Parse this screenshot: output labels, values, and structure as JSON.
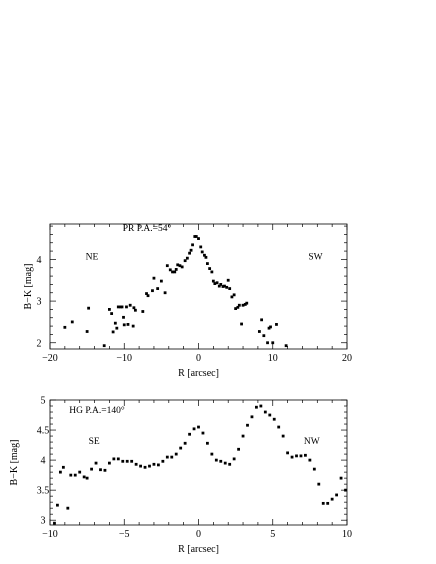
{
  "chart_data": [
    {
      "type": "scatter",
      "title": "",
      "xlabel": "R [arcsec]",
      "ylabel": "B−K [mag]",
      "xlim": [
        -20,
        20
      ],
      "ylim": [
        1.85,
        4.85
      ],
      "xticks": [
        -20,
        -10,
        0,
        10,
        20
      ],
      "yticks": [
        2,
        3,
        4
      ],
      "grid": false,
      "annotations": [
        {
          "text": "PR P.A.=54°",
          "x": -10.2,
          "y": 4.68
        },
        {
          "text": "NE",
          "x": -15.2,
          "y": 4.0
        },
        {
          "text": "SW",
          "x": 14.8,
          "y": 4.0
        }
      ],
      "series": [
        {
          "x": [
            -18,
            -17,
            -15,
            -14.8,
            -12.7,
            -12,
            -11.7,
            -11.5,
            -11.2,
            -11,
            -10.8,
            -10.5,
            -10.3,
            -10.1,
            -10,
            -9.7,
            -9.5,
            -9.2,
            -8.8,
            -8.7,
            -8.5,
            -7.5,
            -7,
            -6.8,
            -6.2,
            -6,
            -5.5,
            -5,
            -4.5,
            -4.2,
            -3.8,
            -3.5,
            -3.2,
            -3,
            -2.8,
            -2.5,
            -2.2,
            -1.8,
            -1.5,
            -1.2,
            -1,
            -0.8,
            -0.5,
            -0.3,
            0,
            0.3,
            0.5,
            0.8,
            1,
            1.2,
            1.5,
            1.8,
            2,
            2.2,
            2.5,
            2.8,
            3,
            3.3,
            3.5,
            3.8,
            4,
            4.2,
            4.5,
            4.8,
            5,
            5.3,
            5.5,
            5.8,
            6,
            6.3,
            6.5,
            8.2,
            8.5,
            8.8,
            9.3,
            9.5,
            9.7,
            10,
            10.5,
            11.8
          ],
          "y": [
            2.37,
            2.5,
            2.27,
            2.83,
            1.93,
            2.8,
            2.7,
            2.26,
            2.47,
            2.35,
            2.86,
            2.86,
            2.86,
            2.61,
            2.43,
            2.86,
            2.44,
            2.9,
            2.4,
            2.84,
            2.78,
            2.75,
            3.18,
            3.13,
            3.25,
            3.55,
            3.3,
            3.48,
            3.2,
            3.85,
            3.75,
            3.7,
            3.7,
            3.76,
            3.87,
            3.85,
            3.82,
            3.97,
            4.03,
            4.15,
            4.22,
            4.35,
            4.55,
            4.55,
            4.5,
            4.3,
            4.18,
            4.1,
            4.05,
            3.9,
            3.78,
            3.7,
            3.48,
            3.42,
            3.44,
            3.36,
            3.4,
            3.35,
            3.36,
            3.33,
            3.5,
            3.3,
            3.1,
            3.15,
            2.82,
            2.85,
            2.9,
            2.45,
            2.9,
            2.92,
            2.95,
            2.27,
            2.55,
            2.17,
            2.0,
            2.35,
            2.38,
            2.0,
            2.44,
            1.93
          ]
        }
      ]
    },
    {
      "type": "scatter",
      "title": "",
      "xlabel": "R [arcsec]",
      "ylabel": "B−K [mag]",
      "xlim": [
        -10,
        10
      ],
      "ylim": [
        2.92,
        5.0
      ],
      "xticks": [
        -10,
        -5,
        0,
        5,
        10
      ],
      "yticks": [
        3,
        3.5,
        4,
        4.5,
        5
      ],
      "ytick_labels": [
        "3",
        "3.5",
        "4",
        "4.5",
        "5"
      ],
      "grid": false,
      "annotations": [
        {
          "text": "HG P.A.=140°",
          "x": -8.7,
          "y": 4.78
        },
        {
          "text": "SE",
          "x": -7.4,
          "y": 4.27
        },
        {
          "text": "NW",
          "x": 7.1,
          "y": 4.27
        }
      ],
      "series": [
        {
          "x": [
            -9.7,
            -9.5,
            -9.3,
            -9.1,
            -8.8,
            -8.6,
            -8.3,
            -8,
            -7.7,
            -7.5,
            -7.2,
            -6.9,
            -6.6,
            -6.3,
            -6,
            -5.7,
            -5.4,
            -5.1,
            -4.8,
            -4.5,
            -4.2,
            -3.9,
            -3.6,
            -3.3,
            -3,
            -2.7,
            -2.4,
            -2.1,
            -1.8,
            -1.5,
            -1.2,
            -0.9,
            -0.6,
            -0.3,
            0,
            0.3,
            0.6,
            0.9,
            1.2,
            1.5,
            1.8,
            2.1,
            2.4,
            2.7,
            3,
            3.3,
            3.6,
            3.9,
            4.2,
            4.5,
            4.8,
            5.1,
            5.4,
            5.7,
            6,
            6.3,
            6.6,
            6.9,
            7.2,
            7.5,
            7.8,
            8.1,
            8.4,
            8.7,
            9,
            9.3,
            9.6,
            9.9
          ],
          "y": [
            2.95,
            3.25,
            3.8,
            3.88,
            3.2,
            3.75,
            3.75,
            3.8,
            3.72,
            3.7,
            3.85,
            3.95,
            3.84,
            3.83,
            3.95,
            4.02,
            4.02,
            3.98,
            3.98,
            3.98,
            3.93,
            3.9,
            3.88,
            3.9,
            3.93,
            3.92,
            3.98,
            4.05,
            4.05,
            4.1,
            4.2,
            4.28,
            4.43,
            4.52,
            4.55,
            4.45,
            4.28,
            4.1,
            4.0,
            3.98,
            3.95,
            3.93,
            4.02,
            4.18,
            4.4,
            4.58,
            4.72,
            4.88,
            4.9,
            4.8,
            4.75,
            4.68,
            4.55,
            4.4,
            4.12,
            4.05,
            4.07,
            4.07,
            4.08,
            4.0,
            3.85,
            3.6,
            3.28,
            3.28,
            3.35,
            3.42,
            3.7,
            3.5
          ]
        }
      ]
    }
  ]
}
